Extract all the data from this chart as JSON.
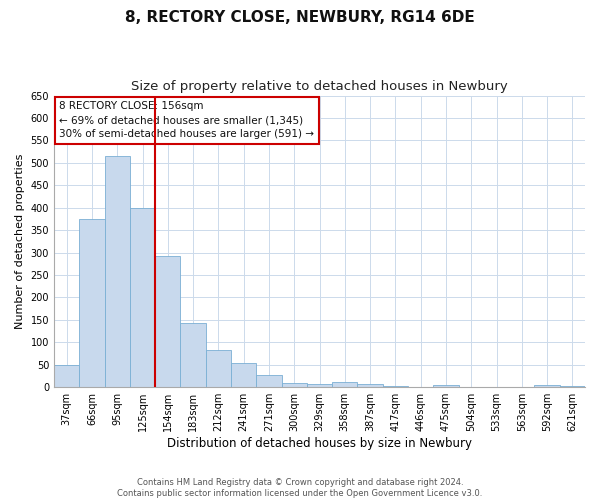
{
  "title1": "8, RECTORY CLOSE, NEWBURY, RG14 6DE",
  "title2": "Size of property relative to detached houses in Newbury",
  "xlabel": "Distribution of detached houses by size in Newbury",
  "ylabel": "Number of detached properties",
  "categories": [
    "37sqm",
    "66sqm",
    "95sqm",
    "125sqm",
    "154sqm",
    "183sqm",
    "212sqm",
    "241sqm",
    "271sqm",
    "300sqm",
    "329sqm",
    "358sqm",
    "387sqm",
    "417sqm",
    "446sqm",
    "475sqm",
    "504sqm",
    "533sqm",
    "563sqm",
    "592sqm",
    "621sqm"
  ],
  "values": [
    50,
    375,
    515,
    400,
    292,
    143,
    82,
    55,
    28,
    10,
    8,
    11,
    8,
    2,
    0,
    4,
    0,
    1,
    0,
    4,
    2
  ],
  "bar_color": "#c8d9ed",
  "bar_edge_color": "#7aafd4",
  "vline_x_index": 4,
  "vline_color": "#cc0000",
  "annotation_line1": "8 RECTORY CLOSE: 156sqm",
  "annotation_line2": "← 69% of detached houses are smaller (1,345)",
  "annotation_line3": "30% of semi-detached houses are larger (591) →",
  "annotation_box_edgecolor": "#cc0000",
  "ylim": [
    0,
    650
  ],
  "yticks": [
    0,
    50,
    100,
    150,
    200,
    250,
    300,
    350,
    400,
    450,
    500,
    550,
    600,
    650
  ],
  "footer1": "Contains HM Land Registry data © Crown copyright and database right 2024.",
  "footer2": "Contains public sector information licensed under the Open Government Licence v3.0.",
  "bg_color": "#ffffff",
  "grid_color": "#ccdaeb",
  "title1_fontsize": 11,
  "title2_fontsize": 9.5,
  "tick_fontsize": 7,
  "ylabel_fontsize": 8,
  "xlabel_fontsize": 8.5,
  "ann_fontsize": 7.5,
  "footer_fontsize": 6
}
